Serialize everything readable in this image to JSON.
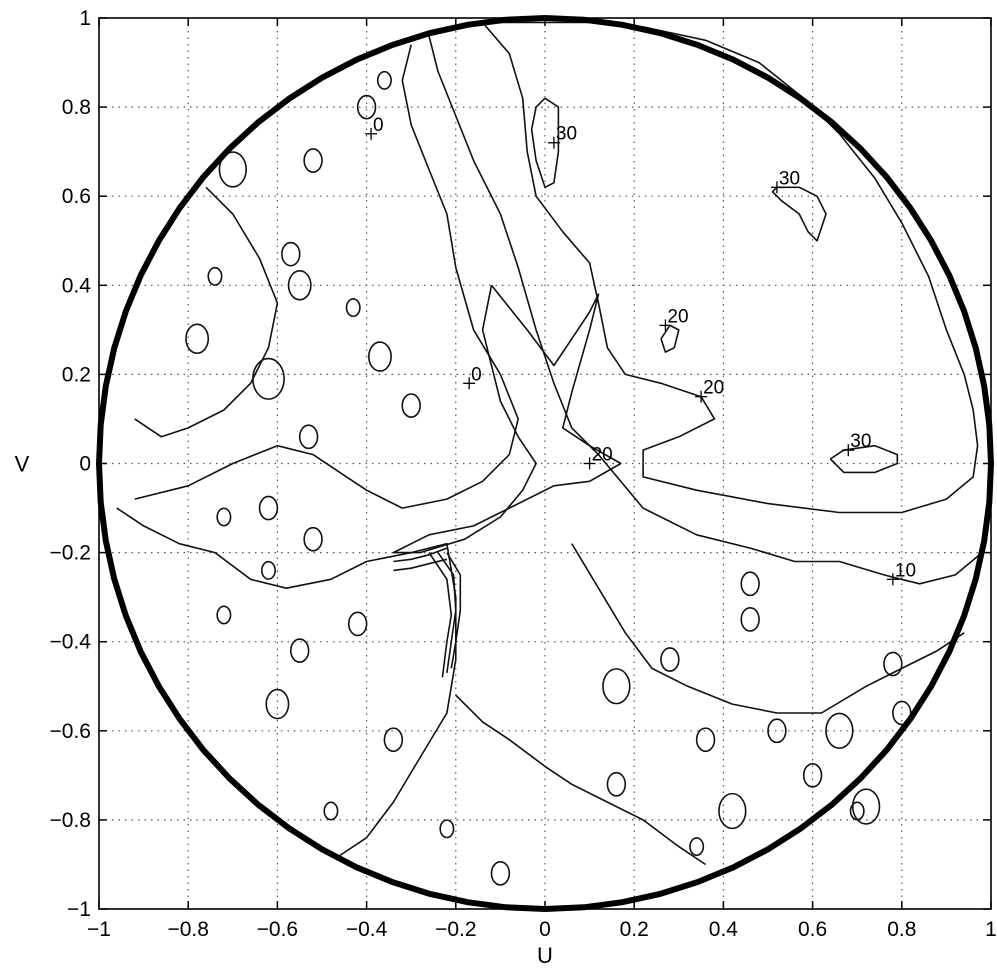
{
  "chart_data": {
    "type": "contour",
    "title": "",
    "xlabel": "U",
    "ylabel": "V",
    "xlim": [
      -1,
      1
    ],
    "ylim": [
      -1,
      1
    ],
    "grid": true,
    "x_ticks": [
      -1,
      -0.8,
      -0.6,
      -0.4,
      -0.2,
      0,
      0.2,
      0.4,
      0.6,
      0.8,
      1
    ],
    "x_tick_labels": [
      "−1",
      "−0.8",
      "−0.6",
      "−0.4",
      "−0.2",
      "0",
      "0.2",
      "0.4",
      "0.6",
      "0.8",
      "1"
    ],
    "y_ticks": [
      -1,
      -0.8,
      -0.6,
      -0.4,
      -0.2,
      0,
      0.2,
      0.4,
      0.6,
      0.8,
      1
    ],
    "y_tick_labels": [
      "−1",
      "−0.8",
      "−0.6",
      "−0.4",
      "−0.2",
      "0",
      "0.2",
      "0.4",
      "0.6",
      "0.8",
      "1"
    ],
    "boundary": {
      "shape": "unit-circle",
      "radius": 1
    },
    "contour_labels": [
      {
        "text": "30",
        "u": 0.02,
        "v": 0.72
      },
      {
        "text": "30",
        "u": 0.52,
        "v": 0.62
      },
      {
        "text": "20",
        "u": 0.27,
        "v": 0.31
      },
      {
        "text": "20",
        "u": 0.35,
        "v": 0.15
      },
      {
        "text": "20",
        "u": 0.1,
        "v": 0.0
      },
      {
        "text": "30",
        "u": 0.68,
        "v": 0.03
      },
      {
        "text": "10",
        "u": 0.78,
        "v": -0.26
      },
      {
        "text": "0",
        "u": -0.39,
        "v": 0.74
      },
      {
        "text": "0",
        "u": -0.17,
        "v": 0.18
      }
    ],
    "contours": [
      {
        "level": 30,
        "points": [
          [
            0.0,
            0.82
          ],
          [
            0.03,
            0.8
          ],
          [
            0.03,
            0.7
          ],
          [
            0.02,
            0.63
          ],
          [
            0.0,
            0.62
          ],
          [
            -0.02,
            0.68
          ],
          [
            -0.03,
            0.75
          ],
          [
            -0.02,
            0.8
          ],
          [
            0.0,
            0.82
          ]
        ]
      },
      {
        "level": 30,
        "points": [
          [
            0.52,
            0.62
          ],
          [
            0.57,
            0.62
          ],
          [
            0.61,
            0.6
          ],
          [
            0.63,
            0.56
          ],
          [
            0.61,
            0.5
          ],
          [
            0.59,
            0.52
          ],
          [
            0.57,
            0.56
          ],
          [
            0.53,
            0.59
          ],
          [
            0.51,
            0.61
          ],
          [
            0.52,
            0.62
          ]
        ]
      },
      {
        "level": 30,
        "points": [
          [
            0.64,
            0.01
          ],
          [
            0.67,
            0.03
          ],
          [
            0.74,
            0.04
          ],
          [
            0.79,
            0.02
          ],
          [
            0.79,
            0.0
          ],
          [
            0.74,
            -0.02
          ],
          [
            0.67,
            -0.02
          ],
          [
            0.64,
            0.01
          ]
        ]
      },
      {
        "level": 20,
        "points": [
          [
            0.26,
            0.28
          ],
          [
            0.28,
            0.31
          ],
          [
            0.3,
            0.3
          ],
          [
            0.29,
            0.26
          ],
          [
            0.27,
            0.25
          ],
          [
            0.26,
            0.28
          ]
        ]
      },
      {
        "level": 20,
        "points": [
          [
            -0.14,
            0.99
          ],
          [
            -0.08,
            0.92
          ],
          [
            -0.05,
            0.82
          ],
          [
            -0.04,
            0.7
          ],
          [
            -0.02,
            0.6
          ],
          [
            0.04,
            0.52
          ],
          [
            0.1,
            0.45
          ],
          [
            0.12,
            0.36
          ],
          [
            0.14,
            0.26
          ],
          [
            0.18,
            0.2
          ],
          [
            0.26,
            0.18
          ],
          [
            0.35,
            0.15
          ],
          [
            0.38,
            0.1
          ],
          [
            0.3,
            0.06
          ],
          [
            0.22,
            0.03
          ],
          [
            0.22,
            -0.03
          ],
          [
            0.34,
            -0.06
          ],
          [
            0.5,
            -0.09
          ],
          [
            0.66,
            -0.11
          ],
          [
            0.8,
            -0.11
          ],
          [
            0.9,
            -0.08
          ],
          [
            0.96,
            -0.03
          ],
          [
            0.97,
            0.04
          ],
          [
            0.96,
            0.12
          ],
          [
            0.94,
            0.2
          ],
          [
            0.9,
            0.3
          ],
          [
            0.86,
            0.42
          ],
          [
            0.8,
            0.54
          ],
          [
            0.74,
            0.64
          ],
          [
            0.66,
            0.74
          ],
          [
            0.58,
            0.82
          ],
          [
            0.48,
            0.9
          ],
          [
            0.36,
            0.95
          ],
          [
            0.22,
            0.98
          ],
          [
            0.1,
            0.99
          ],
          [
            -0.05,
            0.99
          ],
          [
            -0.14,
            0.99
          ]
        ]
      },
      {
        "level": 20,
        "points": [
          [
            -0.12,
            0.4
          ],
          [
            -0.04,
            0.3
          ],
          [
            0.02,
            0.22
          ],
          [
            0.06,
            0.28
          ],
          [
            0.1,
            0.34
          ],
          [
            0.12,
            0.38
          ],
          [
            0.1,
            0.3
          ],
          [
            0.06,
            0.16
          ],
          [
            0.04,
            0.08
          ],
          [
            0.1,
            0.04
          ],
          [
            0.17,
            0.0
          ],
          [
            0.1,
            -0.04
          ],
          [
            0.02,
            -0.05
          ],
          [
            -0.08,
            -0.1
          ],
          [
            -0.16,
            -0.14
          ],
          [
            -0.26,
            -0.16
          ],
          [
            -0.3,
            -0.18
          ],
          [
            -0.34,
            -0.2
          ],
          [
            -0.28,
            -0.2
          ],
          [
            -0.18,
            -0.17
          ],
          [
            -0.1,
            -0.12
          ],
          [
            -0.05,
            -0.06
          ],
          [
            -0.02,
            0.0
          ],
          [
            -0.06,
            0.06
          ],
          [
            -0.1,
            0.14
          ],
          [
            -0.12,
            0.22
          ],
          [
            -0.14,
            0.3
          ],
          [
            -0.12,
            0.4
          ]
        ]
      },
      {
        "level": 10,
        "points": [
          [
            -0.26,
            0.96
          ],
          [
            -0.24,
            0.88
          ],
          [
            -0.2,
            0.78
          ],
          [
            -0.16,
            0.68
          ],
          [
            -0.1,
            0.56
          ],
          [
            -0.06,
            0.44
          ],
          [
            -0.02,
            0.3
          ],
          [
            0.02,
            0.18
          ],
          [
            0.06,
            0.08
          ],
          [
            0.12,
            0.02
          ],
          [
            0.22,
            -0.1
          ],
          [
            0.34,
            -0.16
          ],
          [
            0.46,
            -0.19
          ],
          [
            0.56,
            -0.22
          ],
          [
            0.66,
            -0.22
          ],
          [
            0.76,
            -0.25
          ],
          [
            0.84,
            -0.27
          ],
          [
            0.92,
            -0.25
          ],
          [
            0.98,
            -0.2
          ]
        ]
      },
      {
        "level": 0,
        "points": [
          [
            -0.92,
            -0.08
          ],
          [
            -0.8,
            -0.05
          ],
          [
            -0.7,
            0.0
          ],
          [
            -0.6,
            0.04
          ],
          [
            -0.52,
            0.02
          ],
          [
            -0.46,
            -0.02
          ],
          [
            -0.4,
            -0.06
          ],
          [
            -0.32,
            -0.1
          ],
          [
            -0.22,
            -0.08
          ],
          [
            -0.14,
            -0.04
          ],
          [
            -0.08,
            0.02
          ],
          [
            -0.06,
            0.1
          ],
          [
            -0.1,
            0.2
          ],
          [
            -0.16,
            0.3
          ],
          [
            -0.2,
            0.44
          ],
          [
            -0.22,
            0.56
          ],
          [
            -0.26,
            0.66
          ],
          [
            -0.3,
            0.76
          ],
          [
            -0.32,
            0.86
          ],
          [
            -0.3,
            0.94
          ]
        ]
      },
      {
        "level": 0,
        "points": [
          [
            -0.96,
            -0.1
          ],
          [
            -0.9,
            -0.14
          ],
          [
            -0.82,
            -0.18
          ],
          [
            -0.74,
            -0.2
          ],
          [
            -0.66,
            -0.26
          ],
          [
            -0.58,
            -0.28
          ],
          [
            -0.48,
            -0.26
          ],
          [
            -0.4,
            -0.22
          ],
          [
            -0.3,
            -0.2
          ],
          [
            -0.22,
            -0.18
          ],
          [
            -0.2,
            -0.3
          ],
          [
            -0.2,
            -0.44
          ],
          [
            -0.22,
            -0.56
          ],
          [
            -0.28,
            -0.66
          ],
          [
            -0.34,
            -0.76
          ],
          [
            -0.4,
            -0.84
          ],
          [
            -0.46,
            -0.88
          ]
        ]
      },
      {
        "level": 0,
        "points": [
          [
            -0.2,
            -0.52
          ],
          [
            -0.14,
            -0.58
          ],
          [
            -0.08,
            -0.62
          ],
          [
            0.0,
            -0.68
          ],
          [
            0.06,
            -0.72
          ],
          [
            0.14,
            -0.76
          ],
          [
            0.22,
            -0.8
          ],
          [
            0.3,
            -0.86
          ],
          [
            0.36,
            -0.9
          ]
        ]
      },
      {
        "level": 0,
        "points": [
          [
            0.06,
            -0.18
          ],
          [
            0.12,
            -0.28
          ],
          [
            0.18,
            -0.38
          ],
          [
            0.24,
            -0.46
          ],
          [
            0.32,
            -0.5
          ],
          [
            0.42,
            -0.54
          ],
          [
            0.52,
            -0.56
          ],
          [
            0.62,
            -0.56
          ],
          [
            0.72,
            -0.5
          ],
          [
            0.8,
            -0.46
          ],
          [
            0.88,
            -0.42
          ],
          [
            0.94,
            -0.38
          ]
        ]
      },
      {
        "level": 0,
        "points": [
          [
            -0.76,
            0.62
          ],
          [
            -0.7,
            0.56
          ],
          [
            -0.64,
            0.46
          ],
          [
            -0.6,
            0.36
          ],
          [
            -0.62,
            0.26
          ],
          [
            -0.66,
            0.18
          ],
          [
            -0.72,
            0.12
          ],
          [
            -0.8,
            0.08
          ],
          [
            -0.86,
            0.06
          ],
          [
            -0.92,
            0.1
          ]
        ]
      },
      {
        "level": 0,
        "points": [
          [
            -0.26,
            -0.2
          ],
          [
            -0.22,
            -0.26
          ],
          [
            -0.21,
            -0.34
          ],
          [
            -0.22,
            -0.4
          ],
          [
            -0.23,
            -0.48
          ]
        ]
      },
      {
        "level": 0,
        "points": [
          [
            -0.24,
            -0.2
          ],
          [
            -0.205,
            -0.25
          ],
          [
            -0.2,
            -0.33
          ],
          [
            -0.21,
            -0.4
          ],
          [
            -0.22,
            -0.47
          ]
        ]
      },
      {
        "level": 0,
        "points": [
          [
            -0.22,
            -0.2
          ],
          [
            -0.19,
            -0.25
          ],
          [
            -0.19,
            -0.33
          ],
          [
            -0.2,
            -0.4
          ],
          [
            -0.21,
            -0.46
          ]
        ]
      },
      {
        "level": 0,
        "points": [
          [
            -0.34,
            -0.22
          ],
          [
            -0.3,
            -0.215
          ],
          [
            -0.26,
            -0.205
          ],
          [
            -0.22,
            -0.19
          ]
        ]
      },
      {
        "level": 0,
        "points": [
          [
            -0.34,
            -0.24
          ],
          [
            -0.3,
            -0.235
          ],
          [
            -0.26,
            -0.225
          ],
          [
            -0.22,
            -0.215
          ]
        ]
      }
    ],
    "small_loops": [
      {
        "u": -0.7,
        "v": 0.66,
        "r": 0.03
      },
      {
        "u": -0.57,
        "v": 0.47,
        "r": 0.02
      },
      {
        "u": -0.55,
        "v": 0.4,
        "r": 0.025
      },
      {
        "u": -0.78,
        "v": 0.28,
        "r": 0.025
      },
      {
        "u": -0.62,
        "v": 0.19,
        "r": 0.035
      },
      {
        "u": -0.37,
        "v": 0.24,
        "r": 0.025
      },
      {
        "u": -0.3,
        "v": 0.13,
        "r": 0.02
      },
      {
        "u": -0.43,
        "v": 0.35,
        "r": 0.015
      },
      {
        "u": -0.53,
        "v": 0.06,
        "r": 0.02
      },
      {
        "u": -0.62,
        "v": -0.1,
        "r": 0.02
      },
      {
        "u": -0.72,
        "v": -0.12,
        "r": 0.015
      },
      {
        "u": -0.52,
        "v": -0.17,
        "r": 0.02
      },
      {
        "u": -0.62,
        "v": -0.24,
        "r": 0.015
      },
      {
        "u": -0.72,
        "v": -0.34,
        "r": 0.015
      },
      {
        "u": -0.42,
        "v": -0.36,
        "r": 0.02
      },
      {
        "u": -0.55,
        "v": -0.42,
        "r": 0.02
      },
      {
        "u": -0.6,
        "v": -0.54,
        "r": 0.025
      },
      {
        "u": -0.34,
        "v": -0.62,
        "r": 0.02
      },
      {
        "u": -0.48,
        "v": -0.78,
        "r": 0.015
      },
      {
        "u": -0.1,
        "v": -0.92,
        "r": 0.02
      },
      {
        "u": 0.16,
        "v": -0.72,
        "r": 0.02
      },
      {
        "u": 0.16,
        "v": -0.5,
        "r": 0.03
      },
      {
        "u": 0.28,
        "v": -0.44,
        "r": 0.02
      },
      {
        "u": 0.36,
        "v": -0.62,
        "r": 0.02
      },
      {
        "u": 0.42,
        "v": -0.78,
        "r": 0.03
      },
      {
        "u": 0.46,
        "v": -0.35,
        "r": 0.02
      },
      {
        "u": 0.52,
        "v": -0.6,
        "r": 0.02
      },
      {
        "u": 0.46,
        "v": -0.27,
        "r": 0.02
      },
      {
        "u": 0.66,
        "v": -0.6,
        "r": 0.03
      },
      {
        "u": 0.6,
        "v": -0.7,
        "r": 0.02
      },
      {
        "u": 0.72,
        "v": -0.77,
        "r": 0.03
      },
      {
        "u": 0.78,
        "v": -0.45,
        "r": 0.02
      },
      {
        "u": 0.8,
        "v": -0.56,
        "r": 0.02
      },
      {
        "u": 0.7,
        "v": -0.78,
        "r": 0.015
      },
      {
        "u": 0.34,
        "v": -0.86,
        "r": 0.015
      },
      {
        "u": -0.22,
        "v": -0.82,
        "r": 0.015
      },
      {
        "u": -0.4,
        "v": 0.8,
        "r": 0.02
      },
      {
        "u": -0.36,
        "v": 0.86,
        "r": 0.015
      },
      {
        "u": -0.52,
        "v": 0.68,
        "r": 0.02
      },
      {
        "u": -0.74,
        "v": 0.42,
        "r": 0.015
      }
    ]
  }
}
